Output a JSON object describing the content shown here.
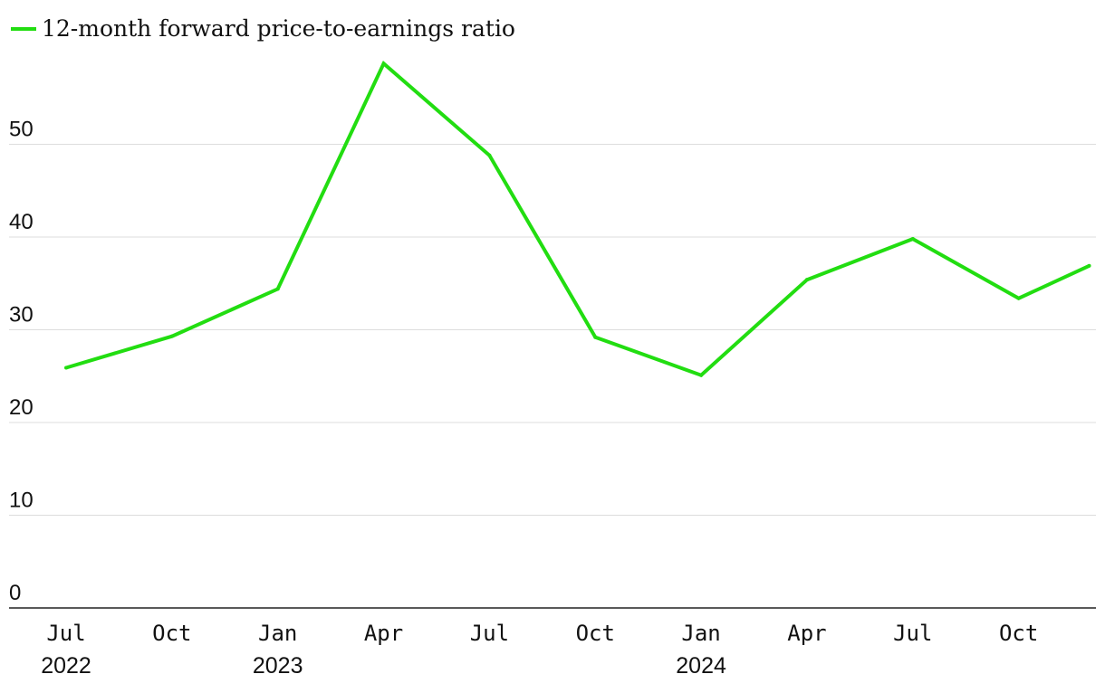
{
  "chart_data": {
    "type": "line",
    "title": "",
    "xlabel": "",
    "ylabel": "",
    "ylim": [
      0,
      60
    ],
    "yticks": [
      0,
      10,
      20,
      30,
      40,
      50
    ],
    "grid": true,
    "legend_position": "top-left",
    "x": [
      "2022-07",
      "2022-10",
      "2023-01",
      "2023-04",
      "2023-07",
      "2023-10",
      "2024-01",
      "2024-04",
      "2024-07",
      "2024-10",
      "2024-12"
    ],
    "x_tick_labels": [
      {
        "date": "2022-07",
        "label": "Jul",
        "year": "2022"
      },
      {
        "date": "2022-10",
        "label": "Oct",
        "year": ""
      },
      {
        "date": "2023-01",
        "label": "Jan",
        "year": "2023"
      },
      {
        "date": "2023-04",
        "label": "Apr",
        "year": ""
      },
      {
        "date": "2023-07",
        "label": "Jul",
        "year": ""
      },
      {
        "date": "2023-10",
        "label": "Oct",
        "year": ""
      },
      {
        "date": "2024-01",
        "label": "Jan",
        "year": "2024"
      },
      {
        "date": "2024-04",
        "label": "Apr",
        "year": ""
      },
      {
        "date": "2024-07",
        "label": "Jul",
        "year": ""
      },
      {
        "date": "2024-10",
        "label": "Oct",
        "year": ""
      }
    ],
    "series": [
      {
        "name": "12-month forward price-to-earnings ratio",
        "color": "#22dd11",
        "values": [
          25.9,
          29.3,
          34.4,
          58.7,
          48.8,
          29.2,
          25.1,
          35.4,
          39.8,
          33.4,
          36.9
        ]
      }
    ]
  }
}
